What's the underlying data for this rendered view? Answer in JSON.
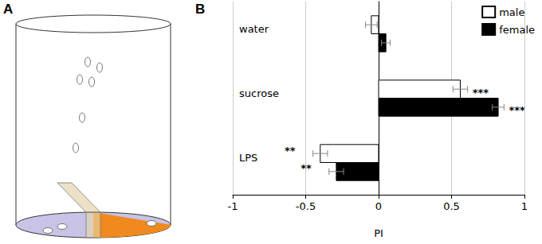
{
  "panel_labels": [
    "A",
    "B"
  ],
  "chart_data": {
    "type": "bar",
    "orientation": "horizontal",
    "categories": [
      "water",
      "sucrose",
      "LPS"
    ],
    "series": [
      {
        "name": "male",
        "color": "#ffffff",
        "values": [
          -0.05,
          0.56,
          -0.4
        ],
        "errors": [
          0.04,
          0.05,
          0.05
        ],
        "significance": [
          null,
          "***",
          "**"
        ]
      },
      {
        "name": "female",
        "color": "#000000",
        "values": [
          0.05,
          0.82,
          -0.29
        ],
        "errors": [
          0.03,
          0.04,
          0.05
        ],
        "significance": [
          null,
          "***",
          "**"
        ]
      }
    ],
    "xlabel": "PI",
    "xlim": [
      -1,
      1
    ],
    "xticks": [
      -1,
      -0.5,
      0,
      0.5,
      1
    ],
    "grid": true,
    "legend": "top-right"
  }
}
